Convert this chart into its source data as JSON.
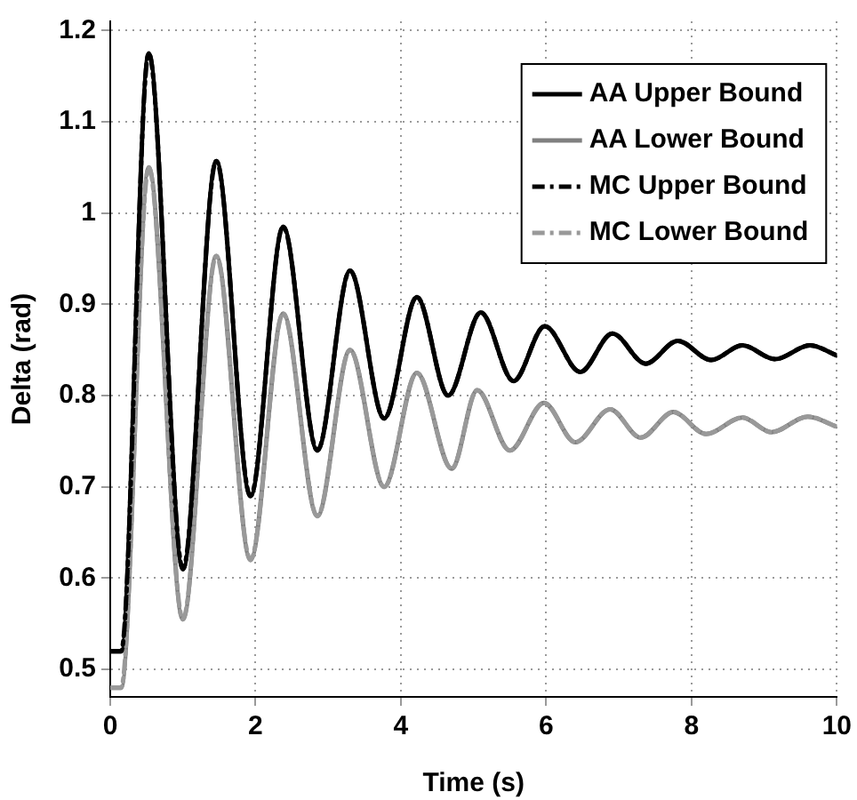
{
  "chart_data": {
    "type": "line",
    "xlabel": "Time (s)",
    "ylabel": "Delta (rad)",
    "xlim": [
      0,
      10
    ],
    "ylim": [
      0.47,
      1.21
    ],
    "xticks": [
      0,
      2,
      4,
      6,
      8,
      10
    ],
    "yticks": [
      0.5,
      0.6,
      0.7,
      0.8,
      0.9,
      1,
      1.1,
      1.2
    ],
    "grid": true,
    "legend": "top right",
    "marker": "none",
    "series": [
      {
        "name": "AA Upper Bound",
        "color": "#000000",
        "line_style": "solid",
        "x": [
          0,
          0.15,
          0.53,
          1.0,
          1.46,
          1.93,
          2.38,
          2.85,
          3.3,
          3.77,
          4.22,
          4.65,
          5.1,
          5.55,
          5.98,
          6.47,
          6.91,
          7.37,
          7.81,
          8.27,
          8.7,
          9.15,
          9.63,
          10
        ],
        "values": [
          0.52,
          0.52,
          1.175,
          0.61,
          1.057,
          0.69,
          0.985,
          0.74,
          0.937,
          0.775,
          0.908,
          0.8,
          0.891,
          0.816,
          0.876,
          0.826,
          0.868,
          0.835,
          0.86,
          0.839,
          0.855,
          0.84,
          0.855,
          0.844
        ]
      },
      {
        "name": "AA Lower Bound",
        "color": "#808080",
        "line_style": "solid",
        "x": [
          0,
          0.15,
          0.53,
          1.0,
          1.46,
          1.93,
          2.38,
          2.85,
          3.3,
          3.77,
          4.22,
          4.7,
          5.05,
          5.5,
          5.97,
          6.4,
          6.88,
          7.3,
          7.75,
          8.2,
          8.7,
          9.1,
          9.6,
          10
        ],
        "values": [
          0.48,
          0.48,
          1.05,
          0.555,
          0.953,
          0.62,
          0.89,
          0.668,
          0.85,
          0.7,
          0.825,
          0.72,
          0.806,
          0.74,
          0.792,
          0.749,
          0.785,
          0.754,
          0.782,
          0.758,
          0.776,
          0.76,
          0.777,
          0.766
        ]
      },
      {
        "name": "MC Upper Bound",
        "color": "#000000",
        "line_style": "dashed",
        "x": [
          0,
          0.15,
          0.53,
          1.0,
          1.46,
          1.93,
          2.38,
          2.85,
          3.3,
          3.77,
          4.22,
          4.65,
          5.1,
          5.55,
          5.98,
          6.47,
          6.91,
          7.37,
          7.81,
          8.27,
          8.7,
          9.15,
          9.63,
          10
        ],
        "values": [
          0.52,
          0.52,
          1.175,
          0.61,
          1.057,
          0.69,
          0.985,
          0.74,
          0.937,
          0.775,
          0.908,
          0.8,
          0.891,
          0.816,
          0.876,
          0.826,
          0.868,
          0.835,
          0.86,
          0.839,
          0.855,
          0.84,
          0.855,
          0.844
        ]
      },
      {
        "name": "MC Lower Bound",
        "color": "#999999",
        "line_style": "dashed",
        "x": [
          0,
          0.15,
          0.53,
          1.0,
          1.46,
          1.93,
          2.38,
          2.85,
          3.3,
          3.77,
          4.22,
          4.7,
          5.05,
          5.5,
          5.97,
          6.4,
          6.88,
          7.3,
          7.75,
          8.2,
          8.7,
          9.1,
          9.6,
          10
        ],
        "values": [
          0.48,
          0.48,
          1.05,
          0.555,
          0.953,
          0.62,
          0.89,
          0.668,
          0.85,
          0.7,
          0.825,
          0.72,
          0.806,
          0.74,
          0.792,
          0.749,
          0.785,
          0.754,
          0.782,
          0.758,
          0.776,
          0.76,
          0.777,
          0.766
        ]
      }
    ]
  }
}
